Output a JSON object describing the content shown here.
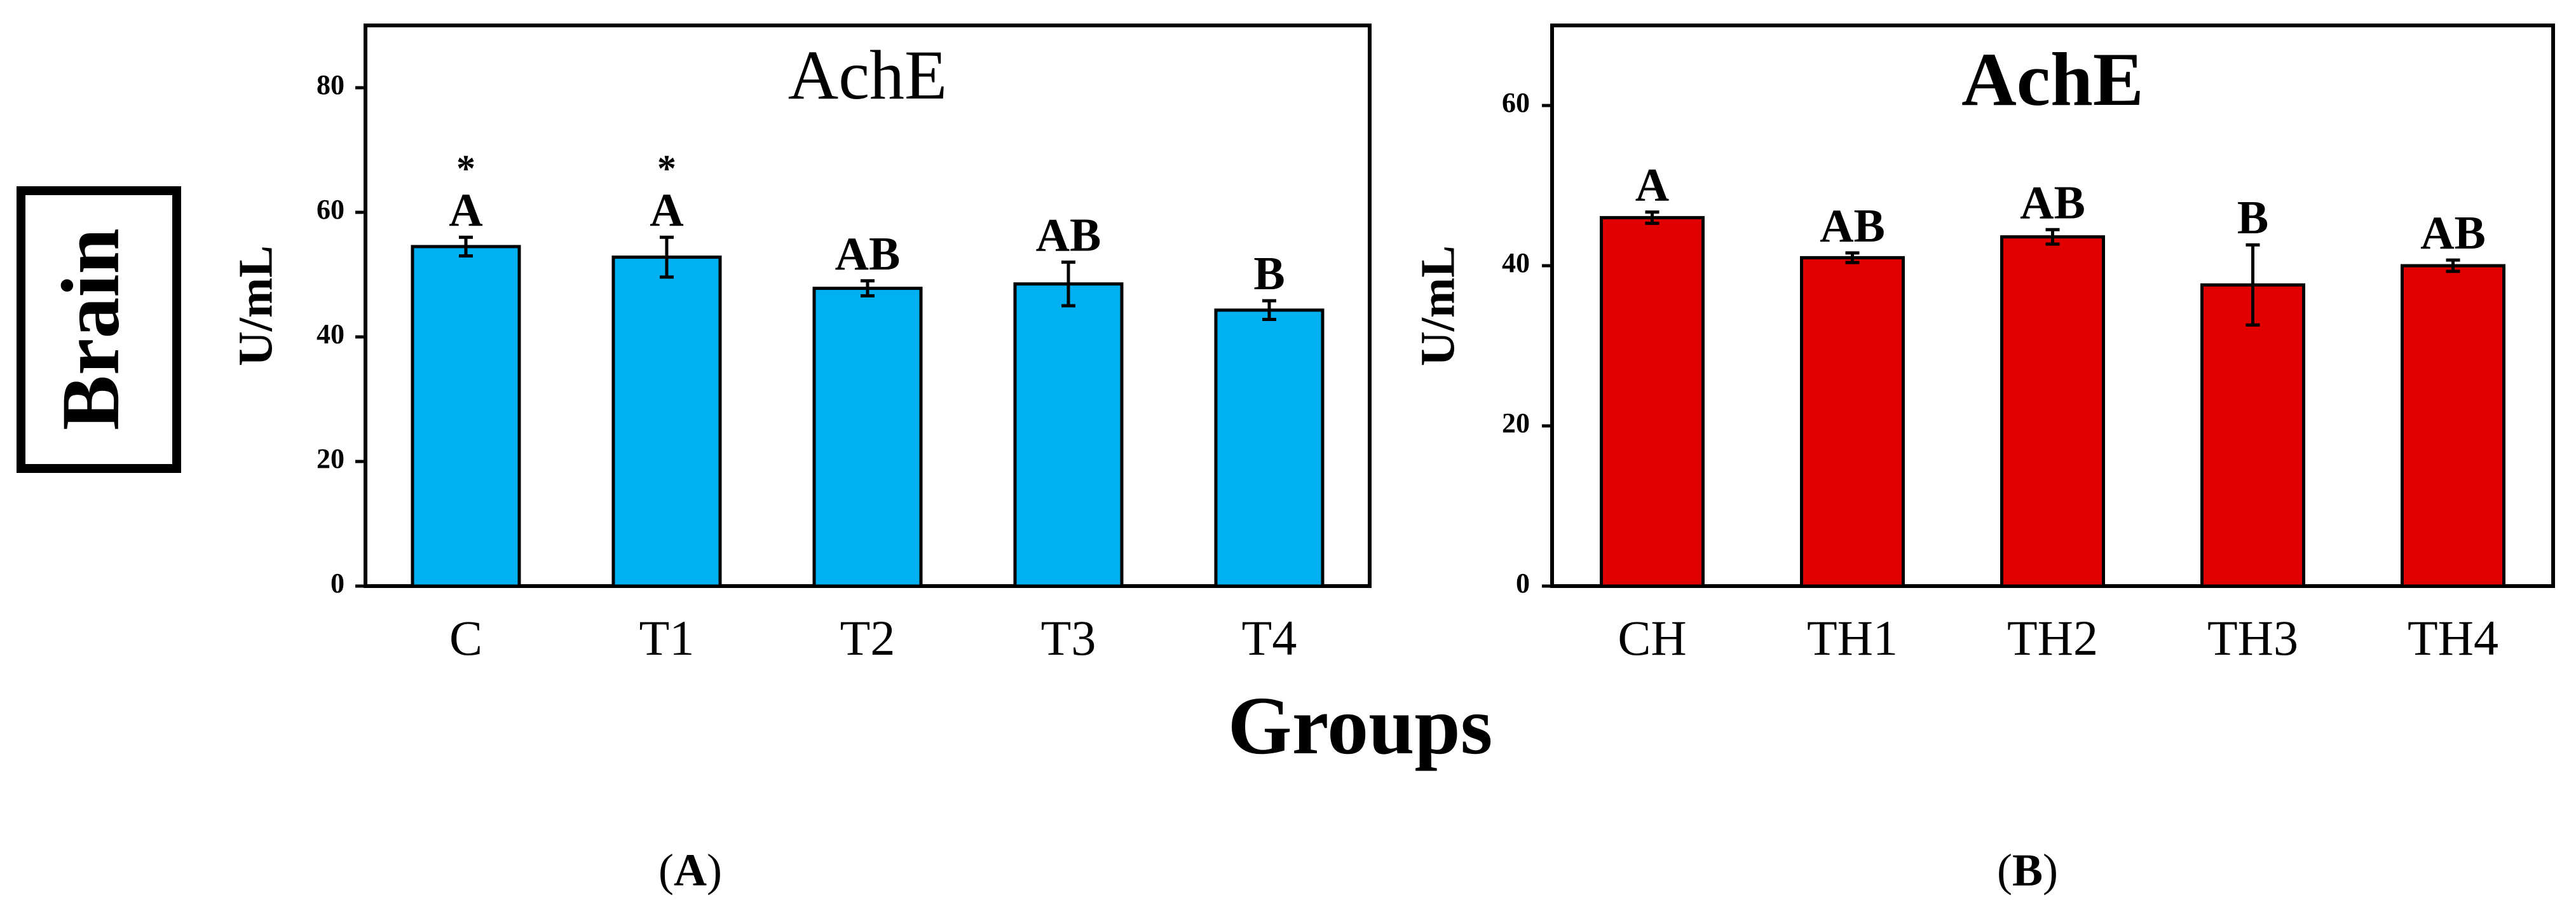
{
  "figure": {
    "side_label": "Brain",
    "x_group_label": "Groups",
    "panel_labels": [
      "A",
      "B"
    ]
  },
  "chart_data": [
    {
      "type": "bar",
      "title": "AchE",
      "ylabel": "U/mL",
      "xlabel": "Groups",
      "categories": [
        "C",
        "T1",
        "T2",
        "T3",
        "T4"
      ],
      "values": [
        54.5,
        52.8,
        47.8,
        48.5,
        44.3
      ],
      "errors": [
        1.5,
        3.2,
        1.2,
        3.5,
        1.5
      ],
      "significance": [
        "A",
        "A",
        "AB",
        "AB",
        "B"
      ],
      "stars": [
        "*",
        "*",
        "",
        "",
        ""
      ],
      "ylim": [
        0,
        90
      ],
      "yticks": [
        0,
        20,
        40,
        60,
        80
      ],
      "color": "#00b0f0",
      "panel": "A"
    },
    {
      "type": "bar",
      "title": "AchE",
      "ylabel": "U/mL",
      "xlabel": "Groups",
      "categories": [
        "CH",
        "TH1",
        "TH2",
        "TH3",
        "TH4"
      ],
      "values": [
        46.0,
        41.0,
        43.6,
        37.6,
        40.0
      ],
      "errors": [
        0.7,
        0.6,
        0.9,
        5.0,
        0.7
      ],
      "significance": [
        "A",
        "AB",
        "AB",
        "B",
        "AB"
      ],
      "stars": [
        "",
        "",
        "",
        "",
        ""
      ],
      "ylim": [
        0,
        70
      ],
      "yticks": [
        0,
        20,
        40,
        60
      ],
      "color": "#e00000",
      "panel": "B"
    }
  ]
}
